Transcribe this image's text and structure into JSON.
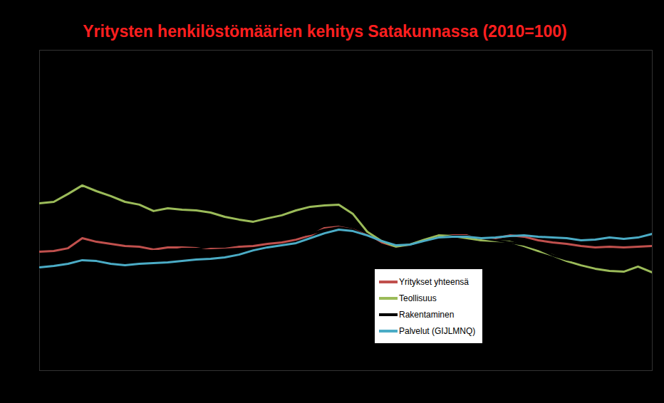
{
  "chart_data": {
    "type": "line",
    "title": "Yritysten henkilöstömäärien kehitys Satakunnassa (2010=100)",
    "categories": [
      null,
      null,
      null,
      null,
      null,
      null,
      null,
      null,
      null,
      null,
      null,
      null,
      null,
      null,
      null,
      null,
      null,
      null,
      null,
      null,
      null,
      null,
      null,
      null,
      null,
      null,
      null,
      null,
      null,
      null,
      null,
      null,
      null,
      null,
      null,
      null,
      null,
      null,
      null,
      null,
      null,
      null,
      null,
      null
    ],
    "series": [
      {
        "name": "Yritykset yhteensä",
        "color": "#c0504d",
        "values": [
          95.7,
          96,
          97.3,
          102,
          100.3,
          99.3,
          98.3,
          98,
          96.7,
          97.7,
          97.7,
          97.3,
          97.3,
          97.7,
          98,
          98.3,
          99.3,
          100,
          101.3,
          103.3,
          106.7,
          107.3,
          106,
          103.3,
          100,
          97.7,
          98.3,
          100.3,
          102.3,
          103.3,
          103.3,
          101,
          102,
          103.3,
          102.7,
          101,
          100,
          99.3,
          98.3,
          97.7,
          98,
          97.7,
          98,
          98.3
        ]
      },
      {
        "name": "Teollisuus",
        "color": "#9bbb59",
        "values": [
          118.3,
          119,
          122.7,
          126.7,
          124,
          121.7,
          119,
          117.7,
          114.7,
          116,
          115.3,
          115,
          114,
          112,
          110.7,
          109.7,
          111.3,
          112.7,
          115,
          116.7,
          117.3,
          117.7,
          113.3,
          105,
          100.7,
          98,
          99,
          101.3,
          103.3,
          103,
          102,
          101,
          100.7,
          100.3,
          98.3,
          96,
          94,
          91.3,
          89.3,
          87.7,
          86.7,
          86.3,
          88.7,
          86
        ]
      },
      {
        "name": "Rakentaminen",
        "color": "#000000",
        "values": [
          88,
          89,
          90,
          92,
          93,
          94,
          95,
          95,
          96,
          96,
          97,
          97,
          98,
          98,
          99,
          100,
          101,
          102,
          103,
          104,
          106,
          107,
          106,
          103,
          99,
          97,
          98,
          100,
          102,
          103,
          103,
          102,
          101,
          100,
          99,
          97,
          94,
          92,
          91,
          91,
          92,
          92,
          93,
          93
        ]
      },
      {
        "name": "Palvelut (GIJLMNQ)",
        "color": "#4bacc6",
        "values": [
          88.3,
          89,
          90,
          91.7,
          91.3,
          90,
          89.3,
          90,
          90.3,
          90.7,
          91.3,
          92,
          92.3,
          93,
          94.3,
          96.3,
          97.7,
          98.7,
          99.7,
          102,
          104.3,
          106,
          105.3,
          103.3,
          100.7,
          98.7,
          99,
          100.7,
          102.3,
          102.7,
          102.7,
          102,
          102.3,
          103,
          103.3,
          102.7,
          102.3,
          102,
          101,
          101.3,
          102.3,
          101.7,
          102.3,
          104
        ]
      }
    ],
    "ylim": [
      40,
      190
    ],
    "tick_labels": false,
    "legend": "bottom"
  }
}
